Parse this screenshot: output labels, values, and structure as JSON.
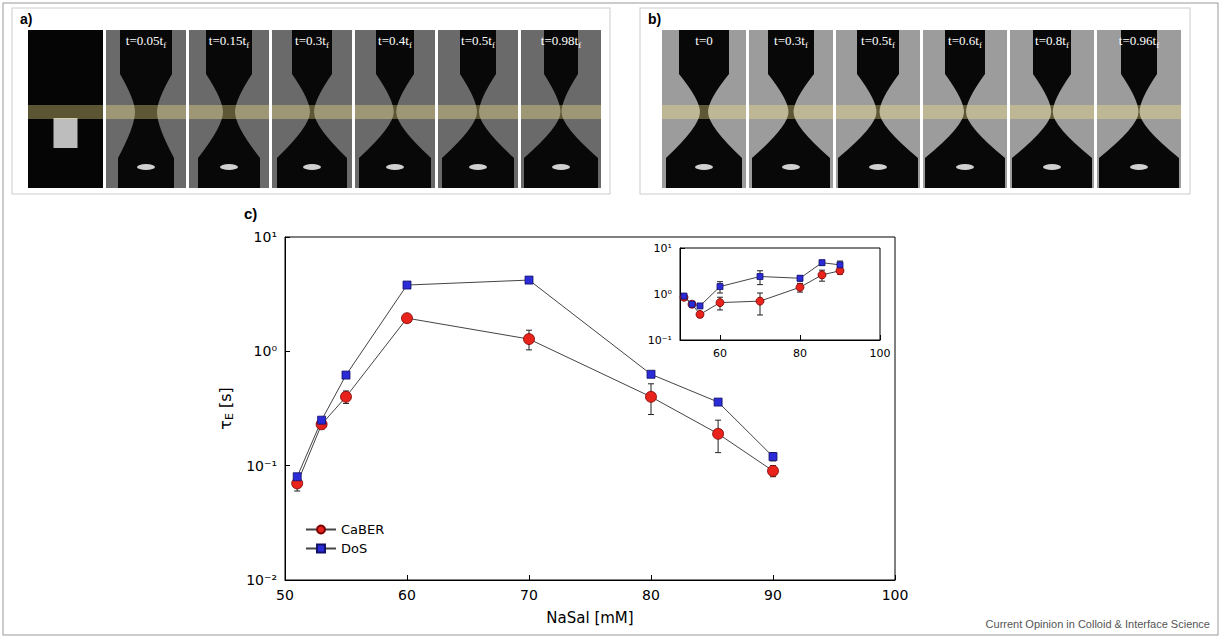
{
  "panels": [
    {
      "letter": "a)",
      "labels": [
        null,
        {
          "main": "t=0.05t",
          "sub": "f"
        },
        {
          "main": "t=0.15t",
          "sub": "f"
        },
        {
          "main": "t=0.3t",
          "sub": "f"
        },
        {
          "main": "t=0.4t",
          "sub": "f"
        },
        {
          "main": "t=0.5t",
          "sub": "f"
        },
        {
          "main": "t=0.98t",
          "sub": "f"
        }
      ]
    },
    {
      "letter": "b)",
      "labels": [
        {
          "main": "t=0",
          "sub": null
        },
        {
          "main": "t=0.3t",
          "sub": "f"
        },
        {
          "main": "t=0.5t",
          "sub": "f"
        },
        {
          "main": "t=0.6t",
          "sub": "f"
        },
        {
          "main": "t=0.8t",
          "sub": "f"
        },
        {
          "main": "t=0.96t",
          "sub": "f"
        }
      ]
    }
  ],
  "source": "Current Opinion in Colloid & Interface Science",
  "chart_data": [
    {
      "type": "line",
      "panel": "c)",
      "x_label": "NaSal [mM]",
      "y_label": {
        "main": "τ",
        "sub": "E",
        "rest": " [s]"
      },
      "x": [
        51,
        53,
        55,
        60,
        70,
        80,
        85.5,
        90
      ],
      "xlim": [
        50,
        100
      ],
      "xticks": [
        50,
        60,
        70,
        80,
        90,
        100
      ],
      "ylim": [
        0.01,
        10
      ],
      "yticks": [
        {
          "value": 0.01,
          "label": "10⁻²"
        },
        {
          "value": 0.1,
          "label": "10⁻¹"
        },
        {
          "value": 1,
          "label": "10⁰"
        },
        {
          "value": 10,
          "label": "10¹"
        }
      ],
      "log": "y",
      "grid": false,
      "legend": "lower left",
      "series": [
        {
          "name": "CaBER",
          "color": "#e8231c",
          "marker": "circle",
          "line_style": "solid",
          "values": [
            0.07,
            0.23,
            0.4,
            1.95,
            1.28,
            0.4,
            0.19,
            0.09
          ],
          "errors": [
            0.01,
            0.02,
            0.05,
            0.15,
            0.25,
            0.12,
            0.06,
            0.01
          ]
        },
        {
          "name": "DoS",
          "color": "#2b2bd8",
          "marker": "square",
          "line_style": "solid",
          "values": [
            0.08,
            0.25,
            0.62,
            3.8,
            4.2,
            0.63,
            0.36,
            0.12
          ],
          "errors": [
            0.005,
            0.01,
            0.03,
            0.2,
            0.2,
            0.04,
            0.02,
            0.01
          ]
        }
      ]
    },
    {
      "type": "line",
      "x": [
        51,
        53,
        55,
        60,
        70,
        80,
        85.5,
        90
      ],
      "xlim": [
        50,
        100
      ],
      "xticks": [
        60,
        80,
        100
      ],
      "ylim": [
        0.1,
        10
      ],
      "yticks": [
        {
          "value": 0.1,
          "label": "10⁻¹"
        },
        {
          "value": 1,
          "label": "10⁰"
        },
        {
          "value": 10,
          "label": "10¹"
        }
      ],
      "log": "y",
      "grid": false,
      "series": [
        {
          "name": "CaBER",
          "color": "#e8231c",
          "marker": "circle",
          "line_style": "solid",
          "values": [
            0.85,
            0.6,
            0.36,
            0.65,
            0.7,
            1.4,
            2.6,
            3.2
          ],
          "errors": [
            0.05,
            0.05,
            0.05,
            0.2,
            0.35,
            0.3,
            0.7,
            0.5
          ]
        },
        {
          "name": "DoS",
          "color": "#2b2bd8",
          "marker": "square",
          "line_style": "solid",
          "values": [
            0.9,
            0.6,
            0.55,
            1.45,
            2.4,
            2.2,
            4.8,
            4.3
          ],
          "errors": [
            0.05,
            0.05,
            0.05,
            0.4,
            0.8,
            0.3,
            0.6,
            0.9
          ]
        }
      ]
    }
  ]
}
